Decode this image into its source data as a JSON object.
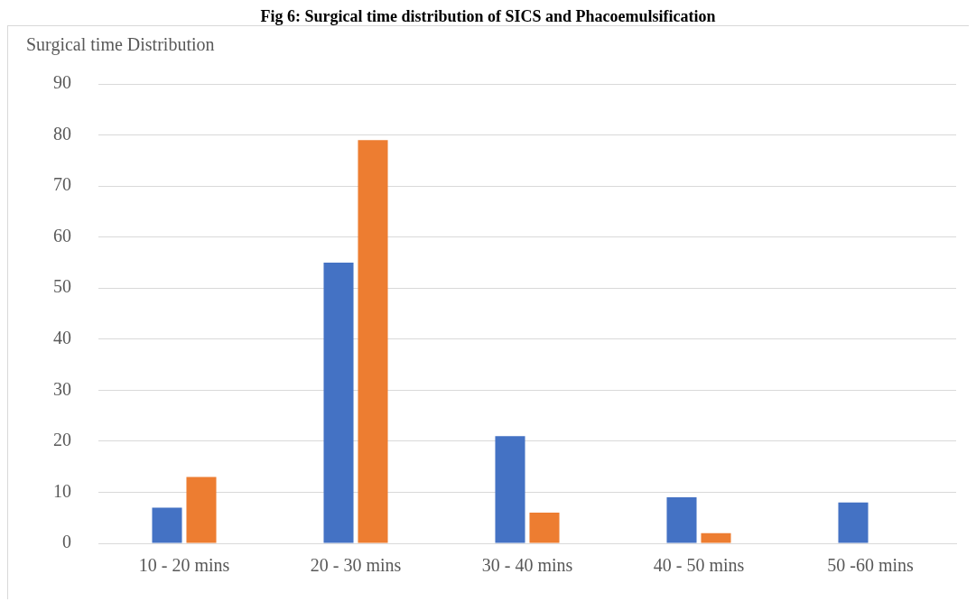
{
  "chart_data": {
    "type": "bar",
    "title": "Surgical time Distribution",
    "annotations": [
      "Fig 6: Surgical time distribution of SICS and Phacoemulsification"
    ],
    "categories": [
      "10 - 20 mins",
      "20 - 30 mins",
      "30 - 40 mins",
      "40 - 50 mins",
      "50 -60 mins"
    ],
    "series": [
      {
        "color": "#4472c4",
        "values": [
          7,
          55,
          21,
          9,
          8
        ]
      },
      {
        "color": "#ed7d31",
        "values": [
          13,
          79,
          6,
          2,
          0
        ]
      }
    ],
    "ylim": [
      0,
      90
    ],
    "yticks": [
      0,
      10,
      20,
      30,
      40,
      50,
      60,
      70,
      80,
      90
    ],
    "grid": "y",
    "legend": false
  }
}
